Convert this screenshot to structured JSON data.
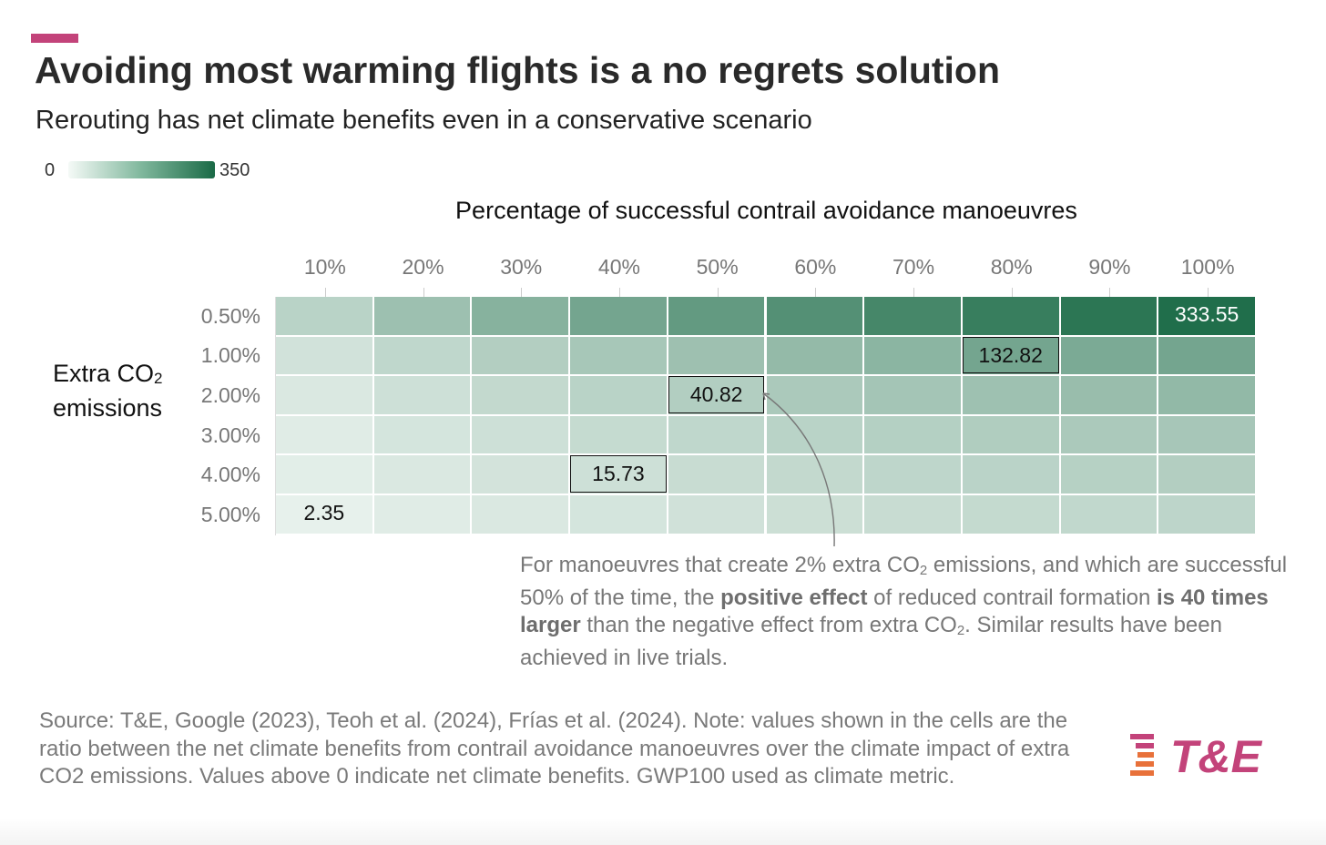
{
  "header": {
    "title": "Avoiding most warming flights is a no regrets solution",
    "subtitle": "Rerouting has net climate benefits even in a conservative scenario",
    "accent_color": "#c3437a"
  },
  "legend": {
    "min_label": "0",
    "max_label": "350",
    "color_low": "#f5faf7",
    "color_high": "#1a6a46"
  },
  "chart_data": {
    "type": "heatmap",
    "xlabel": "Percentage of successful contrail avoidance manoeuvres",
    "ylabel": [
      "Extra CO",
      "2",
      "emissions"
    ],
    "x": [
      "10%",
      "20%",
      "30%",
      "40%",
      "50%",
      "60%",
      "70%",
      "80%",
      "90%",
      "100%"
    ],
    "y": [
      "0.50%",
      "1.00%",
      "2.00%",
      "3.00%",
      "4.00%",
      "5.00%"
    ],
    "values": [
      [
        33,
        67,
        100,
        133,
        167,
        200,
        233,
        267,
        300,
        333.55
      ],
      [
        13,
        27,
        40,
        53,
        66,
        80,
        93,
        132.82,
        120,
        133
      ],
      [
        8,
        16,
        24,
        33,
        40.82,
        49,
        57,
        65,
        73,
        82
      ],
      [
        5,
        11,
        16,
        22,
        27,
        33,
        38,
        43,
        49,
        54
      ],
      [
        4,
        8,
        12,
        15.73,
        20,
        24,
        28,
        32,
        36,
        40
      ],
      [
        2.35,
        5,
        8,
        11,
        14,
        17,
        20,
        23,
        26,
        29
      ]
    ],
    "labeled_cells": [
      {
        "row": 0,
        "col": 9,
        "text": "333.55",
        "boxed": false
      },
      {
        "row": 1,
        "col": 7,
        "text": "132.82",
        "boxed": true
      },
      {
        "row": 2,
        "col": 4,
        "text": "40.82",
        "boxed": true
      },
      {
        "row": 4,
        "col": 3,
        "text": "15.73",
        "boxed": true
      },
      {
        "row": 5,
        "col": 0,
        "text": "2.35",
        "boxed": false
      }
    ],
    "color_scale": [
      0,
      350
    ]
  },
  "annotation": {
    "p1": "For manoeuvres that create 2% extra CO",
    "sub1": "2",
    "p2": " emissions, and which are successful 50% of the time, the ",
    "b1": "positive effect",
    "p3": " of reduced contrail formation ",
    "b2": "is 40 times larger",
    "p4": " than the negative effect from extra CO",
    "sub2": "2",
    "p5": ". Similar results have been achieved in live trials."
  },
  "footer": {
    "source": "Source: T&E, Google (2023), Teoh et al. (2024), Frías et al. (2024). Note: values shown in the cells are the ratio between the net climate benefits from contrail avoidance manoeuvres over the climate impact of extra CO2 emissions. Values above 0 indicate net climate benefits. GWP100 used as climate metric.",
    "logo_text": "T&E",
    "logo_colors": [
      "#e8713a",
      "#c3437a"
    ]
  }
}
